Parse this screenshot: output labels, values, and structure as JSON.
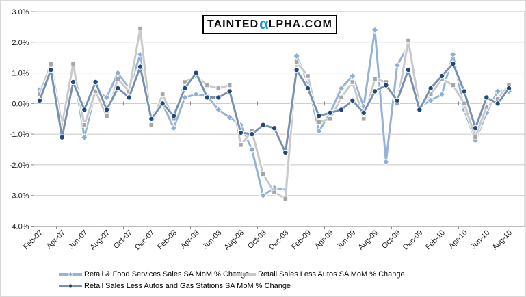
{
  "logo": {
    "part1": "TAINTED",
    "alpha": "α",
    "part2": "LPHA.COM"
  },
  "chart_data": {
    "type": "line",
    "title": "",
    "xlabel": "",
    "ylabel": "",
    "ylim": [
      -4,
      3
    ],
    "ytick_step": 1,
    "ytick_labels": [
      "3.0%",
      "2.0%",
      "1.0%",
      "0.0%",
      "-1.0%",
      "-2.0%",
      "-3.0%",
      "-4.0%"
    ],
    "grid": true,
    "legend_position": "bottom",
    "x_label_every": 2,
    "x": [
      "Feb-07",
      "Mar-07",
      "Apr-07",
      "May-07",
      "Jun-07",
      "Jul-07",
      "Aug-07",
      "Sep-07",
      "Oct-07",
      "Nov-07",
      "Dec-07",
      "Jan-08",
      "Feb-08",
      "Mar-08",
      "Apr-08",
      "May-08",
      "Jun-08",
      "Jul-08",
      "Aug-08",
      "Sep-08",
      "Oct-08",
      "Nov-08",
      "Dec-08",
      "Jan-09",
      "Feb-09",
      "Mar-09",
      "Apr-09",
      "May-09",
      "Jun-09",
      "Jul-09",
      "Aug-09",
      "Sep-09",
      "Oct-09",
      "Nov-09",
      "Dec-09",
      "Jan-10",
      "Feb-10",
      "Mar-10",
      "Apr-10",
      "May-10",
      "Jun-10",
      "Jul-10",
      "Aug-10"
    ],
    "series": [
      {
        "name": "Retail & Food Services Sales SA MoM % Change",
        "marker": "diamond",
        "line_color": "#95b3d7",
        "marker_color": "#8eaed6",
        "values": [
          0.45,
          1.1,
          -0.7,
          1.2,
          -1.1,
          0.4,
          0.2,
          1.0,
          0.5,
          1.6,
          -0.4,
          0.0,
          -0.8,
          0.2,
          0.3,
          0.25,
          -0.2,
          -0.45,
          -0.7,
          -1.5,
          -3.0,
          -2.75,
          -2.8,
          1.55,
          0.7,
          -0.9,
          -0.3,
          0.5,
          0.9,
          -0.1,
          2.4,
          -1.9,
          1.25,
          1.9,
          -0.1,
          0.1,
          0.3,
          1.6,
          -0.2,
          -1.2,
          -0.3,
          0.4,
          0.4
        ]
      },
      {
        "name": "Retail Sales Less Autos SA MoM % Change",
        "marker": "square",
        "line_color": "#c9c9c9",
        "marker_color": "#a6a6a6",
        "values": [
          0.3,
          1.3,
          -0.7,
          1.3,
          -0.7,
          0.4,
          -0.4,
          0.8,
          0.4,
          2.45,
          -0.7,
          0.3,
          -0.5,
          0.7,
          0.9,
          0.6,
          0.5,
          0.6,
          -1.35,
          -0.9,
          -2.3,
          -2.9,
          -3.1,
          1.35,
          0.9,
          -0.6,
          -0.5,
          0.2,
          0.7,
          -0.5,
          0.8,
          0.7,
          0.0,
          2.05,
          -0.1,
          0.3,
          0.8,
          0.6,
          0.0,
          -1.1,
          -0.1,
          0.15,
          0.6
        ]
      },
      {
        "name": "Retail Sales Less Autos and Gas Stations SA MoM % Change",
        "marker": "circle",
        "line_color": "#7790b0",
        "marker_color": "#1f497d",
        "values": [
          0.1,
          1.1,
          -1.1,
          0.7,
          -0.2,
          0.7,
          -0.2,
          0.5,
          0.2,
          1.2,
          -0.5,
          0.0,
          -0.4,
          0.5,
          1.0,
          0.2,
          0.2,
          0.4,
          -0.95,
          -1.0,
          -0.7,
          -0.8,
          -1.6,
          1.1,
          0.5,
          -0.4,
          -0.3,
          -0.2,
          0.1,
          -0.3,
          0.4,
          0.6,
          0.1,
          1.1,
          -0.2,
          0.5,
          0.9,
          1.3,
          0.4,
          -0.8,
          0.2,
          0.0,
          0.5
        ]
      }
    ]
  }
}
